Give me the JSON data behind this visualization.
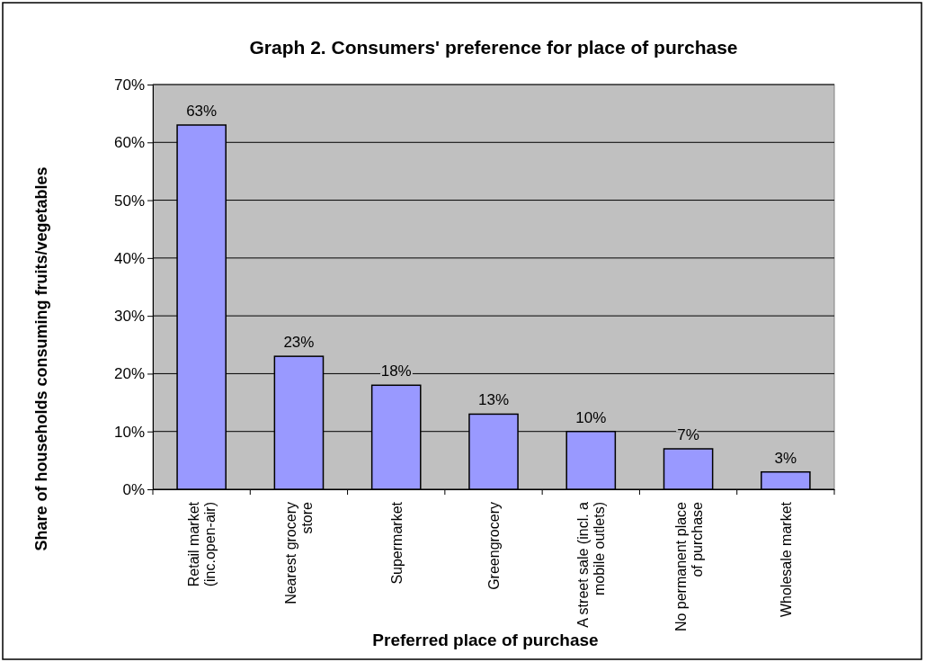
{
  "chart_data": {
    "type": "bar",
    "title": "Graph 2. Consumers' preference for place of purchase",
    "xlabel": "Preferred place of purchase",
    "ylabel": "Share of households  consuming fruits/vegetables",
    "categories": [
      "Retail market (inc.open-air)",
      "Nearest grocery store",
      "Supermarket",
      "Greengrocery",
      "A street sale (incl. a mobile outlets)",
      "No permanent place of purchase",
      "Wholesale market"
    ],
    "values": [
      63,
      23,
      18,
      13,
      10,
      7,
      3
    ],
    "color": "#9999ff",
    "value_labels": [
      "63%",
      "23%",
      "18%",
      "13%",
      "10%",
      "7%",
      "3%"
    ],
    "ylim": [
      0,
      70
    ],
    "yticks": [
      {
        "value": 0,
        "label": "0%"
      },
      {
        "value": 10,
        "label": "10%"
      },
      {
        "value": 20,
        "label": "20%"
      },
      {
        "value": 30,
        "label": "30%"
      },
      {
        "value": 40,
        "label": "40%"
      },
      {
        "value": 50,
        "label": "50%"
      },
      {
        "value": 60,
        "label": "60%"
      },
      {
        "value": 70,
        "label": "70%"
      }
    ],
    "grid": "y"
  }
}
